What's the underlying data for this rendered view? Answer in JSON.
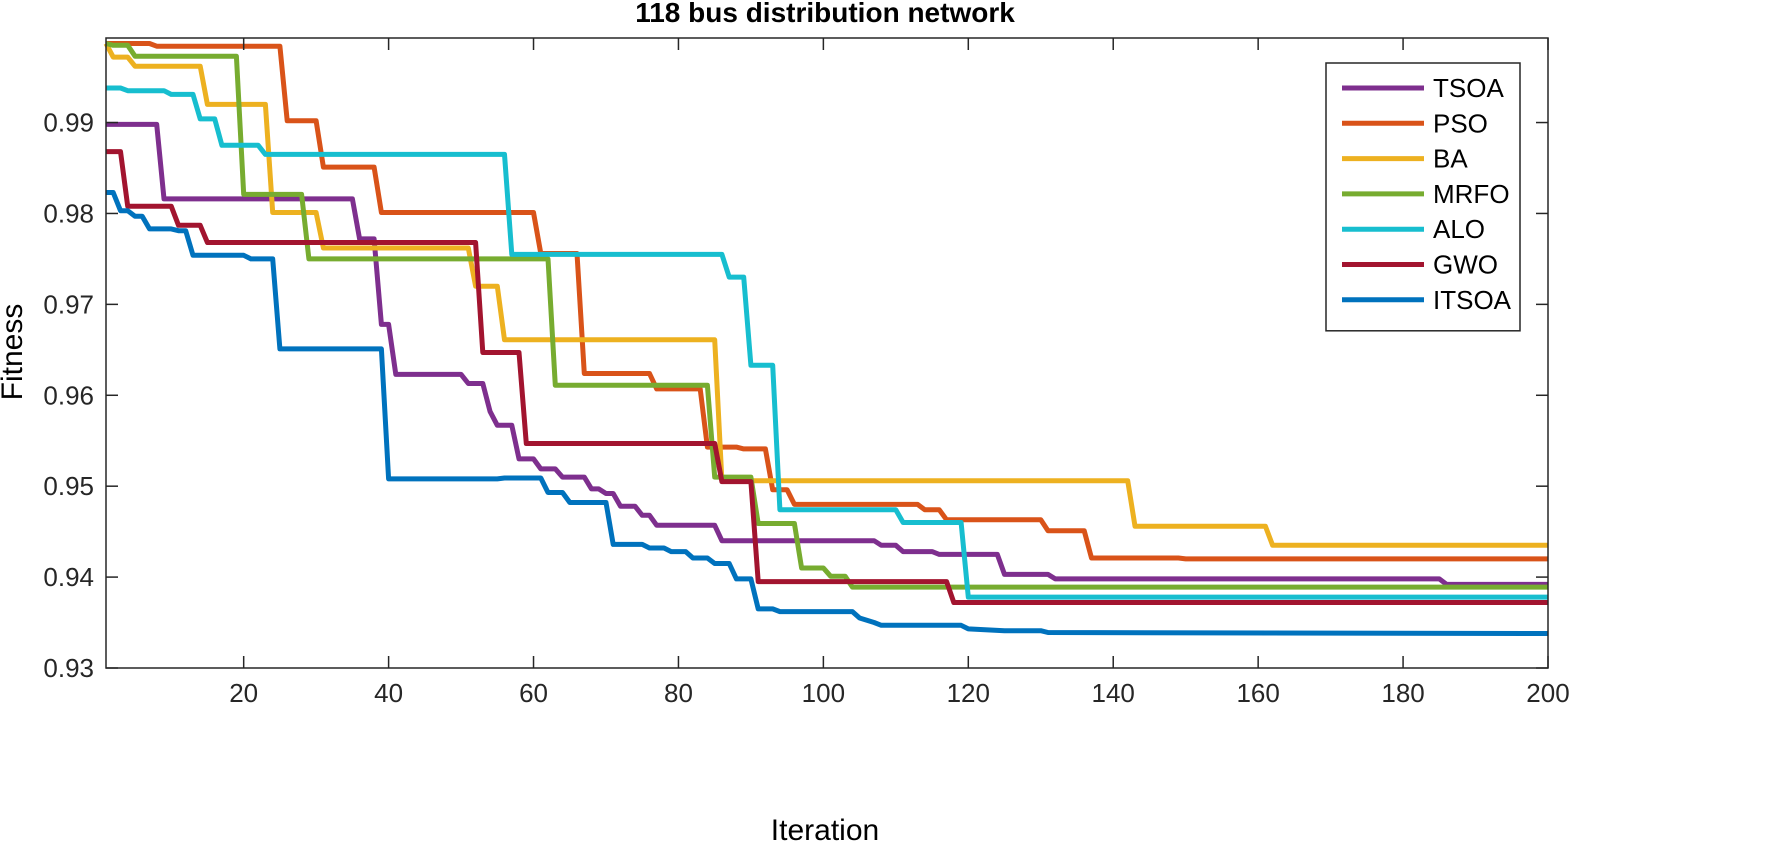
{
  "chart_data": {
    "type": "line",
    "title": "118 bus distribution network",
    "xlabel": "Iteration",
    "ylabel": "Fitness",
    "xlim": [
      1,
      200
    ],
    "ylim": [
      0.93,
      0.9993
    ],
    "xticks": [
      20,
      40,
      60,
      80,
      100,
      120,
      140,
      160,
      180,
      200
    ],
    "yticks": [
      0.93,
      0.94,
      0.95,
      0.96,
      0.97,
      0.98,
      0.99
    ],
    "xtick_labels": [
      "20",
      "40",
      "60",
      "80",
      "100",
      "120",
      "140",
      "160",
      "180",
      "200"
    ],
    "ytick_labels": [
      "0.93",
      "0.94",
      "0.95",
      "0.96",
      "0.97",
      "0.98",
      "0.99"
    ],
    "grid": false,
    "legend_position": "top-right",
    "series": [
      {
        "name": "TSOA",
        "color": "#7E2F8E",
        "points": [
          [
            1,
            0.9898
          ],
          [
            8,
            0.9898
          ],
          [
            9,
            0.9816
          ],
          [
            35,
            0.9816
          ],
          [
            36,
            0.9772
          ],
          [
            38,
            0.9772
          ],
          [
            39,
            0.9678
          ],
          [
            40,
            0.9678
          ],
          [
            41,
            0.9623
          ],
          [
            50,
            0.9623
          ],
          [
            51,
            0.9613
          ],
          [
            53,
            0.9613
          ],
          [
            54,
            0.9582
          ],
          [
            55,
            0.9567
          ],
          [
            57,
            0.9567
          ],
          [
            58,
            0.953
          ],
          [
            60,
            0.953
          ],
          [
            61,
            0.9519
          ],
          [
            63,
            0.9519
          ],
          [
            64,
            0.951
          ],
          [
            67,
            0.951
          ],
          [
            68,
            0.9497
          ],
          [
            69,
            0.9497
          ],
          [
            70,
            0.9492
          ],
          [
            71,
            0.9492
          ],
          [
            72,
            0.9478
          ],
          [
            74,
            0.9478
          ],
          [
            75,
            0.9468
          ],
          [
            76,
            0.9468
          ],
          [
            77,
            0.9457
          ],
          [
            85,
            0.9457
          ],
          [
            86,
            0.944
          ],
          [
            107,
            0.944
          ],
          [
            108,
            0.9435
          ],
          [
            110,
            0.9435
          ],
          [
            111,
            0.9428
          ],
          [
            115,
            0.9428
          ],
          [
            116,
            0.9425
          ],
          [
            124,
            0.9425
          ],
          [
            125,
            0.9403
          ],
          [
            131,
            0.9403
          ],
          [
            132,
            0.9398
          ],
          [
            185,
            0.9398
          ],
          [
            186,
            0.9392
          ],
          [
            200,
            0.9392
          ]
        ]
      },
      {
        "name": "PSO",
        "color": "#D95319",
        "points": [
          [
            1,
            0.9987
          ],
          [
            7,
            0.9987
          ],
          [
            8,
            0.9984
          ],
          [
            25,
            0.9984
          ],
          [
            26,
            0.9902
          ],
          [
            30,
            0.9902
          ],
          [
            31,
            0.9851
          ],
          [
            38,
            0.9851
          ],
          [
            39,
            0.9801
          ],
          [
            60,
            0.9801
          ],
          [
            61,
            0.9756
          ],
          [
            66,
            0.9756
          ],
          [
            67,
            0.9624
          ],
          [
            76,
            0.9624
          ],
          [
            77,
            0.9607
          ],
          [
            83,
            0.9607
          ],
          [
            84,
            0.9543
          ],
          [
            88,
            0.9543
          ],
          [
            89,
            0.9541
          ],
          [
            92,
            0.9541
          ],
          [
            93,
            0.9496
          ],
          [
            95,
            0.9496
          ],
          [
            96,
            0.948
          ],
          [
            113,
            0.948
          ],
          [
            114,
            0.9474
          ],
          [
            116,
            0.9474
          ],
          [
            117,
            0.9463
          ],
          [
            130,
            0.9463
          ],
          [
            131,
            0.9451
          ],
          [
            136,
            0.9451
          ],
          [
            137,
            0.9421
          ],
          [
            149,
            0.9421
          ],
          [
            150,
            0.942
          ],
          [
            200,
            0.942
          ]
        ]
      },
      {
        "name": "BA",
        "color": "#EDB120",
        "points": [
          [
            1,
            0.9987
          ],
          [
            2,
            0.9972
          ],
          [
            4,
            0.9972
          ],
          [
            5,
            0.9962
          ],
          [
            14,
            0.9962
          ],
          [
            15,
            0.992
          ],
          [
            23,
            0.992
          ],
          [
            24,
            0.9801
          ],
          [
            30,
            0.9801
          ],
          [
            31,
            0.9762
          ],
          [
            51,
            0.9762
          ],
          [
            52,
            0.972
          ],
          [
            55,
            0.972
          ],
          [
            56,
            0.9661
          ],
          [
            85,
            0.9661
          ],
          [
            86,
            0.9506
          ],
          [
            142,
            0.9506
          ],
          [
            143,
            0.9456
          ],
          [
            161,
            0.9456
          ],
          [
            162,
            0.9435
          ],
          [
            200,
            0.9435
          ]
        ]
      },
      {
        "name": "MRFO",
        "color": "#77AC30",
        "points": [
          [
            1,
            0.9987
          ],
          [
            2,
            0.9985
          ],
          [
            4,
            0.9985
          ],
          [
            5,
            0.9973
          ],
          [
            19,
            0.9973
          ],
          [
            20,
            0.9821
          ],
          [
            28,
            0.9821
          ],
          [
            29,
            0.975
          ],
          [
            62,
            0.975
          ],
          [
            63,
            0.9611
          ],
          [
            84,
            0.9611
          ],
          [
            85,
            0.951
          ],
          [
            90,
            0.951
          ],
          [
            91,
            0.9459
          ],
          [
            96,
            0.9459
          ],
          [
            97,
            0.941
          ],
          [
            100,
            0.941
          ],
          [
            101,
            0.9401
          ],
          [
            103,
            0.9401
          ],
          [
            104,
            0.9389
          ],
          [
            200,
            0.9389
          ]
        ]
      },
      {
        "name": "ALO",
        "color": "#17BECF",
        "points": [
          [
            1,
            0.9938
          ],
          [
            3,
            0.9938
          ],
          [
            4,
            0.9935
          ],
          [
            9,
            0.9935
          ],
          [
            10,
            0.9931
          ],
          [
            13,
            0.9931
          ],
          [
            14,
            0.9904
          ],
          [
            16,
            0.9904
          ],
          [
            17,
            0.9875
          ],
          [
            22,
            0.9875
          ],
          [
            23,
            0.9865
          ],
          [
            56,
            0.9865
          ],
          [
            57,
            0.9755
          ],
          [
            86,
            0.9755
          ],
          [
            87,
            0.973
          ],
          [
            89,
            0.973
          ],
          [
            90,
            0.9633
          ],
          [
            93,
            0.9633
          ],
          [
            94,
            0.9474
          ],
          [
            110,
            0.9474
          ],
          [
            111,
            0.946
          ],
          [
            119,
            0.946
          ],
          [
            120,
            0.9378
          ],
          [
            200,
            0.9378
          ]
        ]
      },
      {
        "name": "GWO",
        "color": "#A2142F",
        "points": [
          [
            1,
            0.9868
          ],
          [
            3,
            0.9868
          ],
          [
            4,
            0.9808
          ],
          [
            10,
            0.9808
          ],
          [
            11,
            0.9787
          ],
          [
            14,
            0.9787
          ],
          [
            15,
            0.9768
          ],
          [
            52,
            0.9768
          ],
          [
            53,
            0.9647
          ],
          [
            58,
            0.9647
          ],
          [
            59,
            0.9547
          ],
          [
            85,
            0.9547
          ],
          [
            86,
            0.9505
          ],
          [
            90,
            0.9505
          ],
          [
            91,
            0.9395
          ],
          [
            117,
            0.9395
          ],
          [
            118,
            0.9372
          ],
          [
            200,
            0.9372
          ]
        ]
      },
      {
        "name": "ITSOA",
        "color": "#0072BD",
        "points": [
          [
            1,
            0.9823
          ],
          [
            2,
            0.9823
          ],
          [
            3,
            0.9803
          ],
          [
            4,
            0.9803
          ],
          [
            5,
            0.9797
          ],
          [
            6,
            0.9797
          ],
          [
            7,
            0.9783
          ],
          [
            10,
            0.9783
          ],
          [
            11,
            0.9781
          ],
          [
            12,
            0.9781
          ],
          [
            13,
            0.9754
          ],
          [
            20,
            0.9754
          ],
          [
            21,
            0.975
          ],
          [
            24,
            0.975
          ],
          [
            25,
            0.9651
          ],
          [
            39,
            0.9651
          ],
          [
            40,
            0.9508
          ],
          [
            55,
            0.9508
          ],
          [
            56,
            0.9509
          ],
          [
            61,
            0.9509
          ],
          [
            62,
            0.9493
          ],
          [
            64,
            0.9493
          ],
          [
            65,
            0.9482
          ],
          [
            70,
            0.9482
          ],
          [
            71,
            0.9436
          ],
          [
            75,
            0.9436
          ],
          [
            76,
            0.9432
          ],
          [
            78,
            0.9432
          ],
          [
            79,
            0.9428
          ],
          [
            81,
            0.9428
          ],
          [
            82,
            0.9421
          ],
          [
            84,
            0.9421
          ],
          [
            85,
            0.9415
          ],
          [
            87,
            0.9415
          ],
          [
            88,
            0.9398
          ],
          [
            89,
            0.9398
          ],
          [
            90,
            0.9398
          ],
          [
            91,
            0.9365
          ],
          [
            93,
            0.9365
          ],
          [
            94,
            0.9362
          ],
          [
            104,
            0.9362
          ],
          [
            105,
            0.9355
          ],
          [
            107,
            0.935
          ],
          [
            108,
            0.9347
          ],
          [
            119,
            0.9347
          ],
          [
            120,
            0.9343
          ],
          [
            125,
            0.9341
          ],
          [
            130,
            0.9341
          ],
          [
            131,
            0.9339
          ],
          [
            200,
            0.9338
          ]
        ]
      }
    ]
  }
}
